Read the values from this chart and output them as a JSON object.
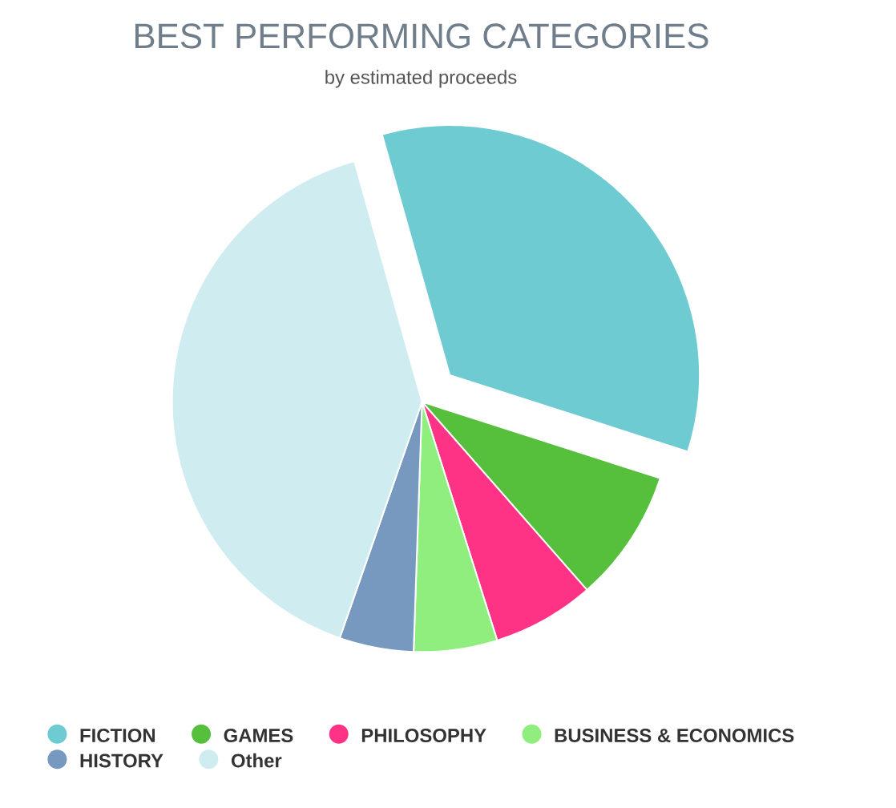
{
  "chart_data": {
    "type": "pie",
    "title": "BEST PERFORMING CATEGORIES",
    "subtitle": "by estimated proceeds",
    "categories": [
      "FICTION",
      "GAMES",
      "PHILOSOPHY",
      "BUSINESS & ECONOMICS",
      "HISTORY",
      "Other"
    ],
    "values": [
      34.3,
      8.6,
      6.6,
      5.4,
      4.8,
      40.3
    ],
    "colors": [
      "#6ecbd2",
      "#56bf3c",
      "#ff3385",
      "#90ee7e",
      "#7798bf",
      "#cfedf0"
    ],
    "legend": "bottom"
  }
}
